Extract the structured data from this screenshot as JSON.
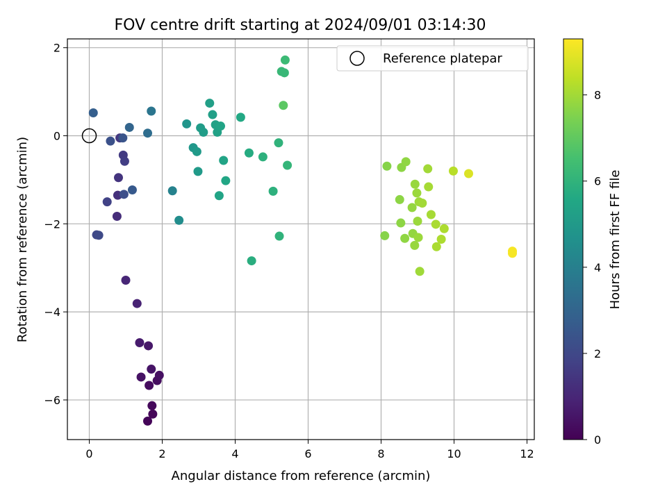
{
  "chart_data": {
    "type": "scatter",
    "title": "FOV centre drift starting at 2024/09/01 03:14:30",
    "xlabel": "Angular distance from reference (arcmin)",
    "ylabel": "Rotation from reference (arcmin)",
    "xlim": [
      -0.6,
      12.2
    ],
    "ylim": [
      -6.9,
      2.2
    ],
    "xticks": [
      0,
      2,
      4,
      6,
      8,
      10,
      12
    ],
    "yticks": [
      -6,
      -4,
      -2,
      0,
      2
    ],
    "grid": true,
    "legend": {
      "label": "Reference platepar",
      "placement": "upper right"
    },
    "reference_point": {
      "x": 0,
      "y": 0
    },
    "colorbar": {
      "label": "Hours from first FF file",
      "colormap": "viridis",
      "range": [
        0,
        9.3
      ],
      "ticks": [
        0,
        2,
        4,
        6,
        8
      ]
    },
    "points": [
      {
        "x": 1.6,
        "y": -6.48,
        "c": 0.1
      },
      {
        "x": 1.74,
        "y": -6.32,
        "c": 0.15
      },
      {
        "x": 1.72,
        "y": -6.13,
        "c": 0.2
      },
      {
        "x": 1.64,
        "y": -5.67,
        "c": 0.3
      },
      {
        "x": 1.86,
        "y": -5.56,
        "c": 0.35
      },
      {
        "x": 1.92,
        "y": -5.44,
        "c": 0.4
      },
      {
        "x": 1.42,
        "y": -5.48,
        "c": 0.45
      },
      {
        "x": 1.7,
        "y": -5.3,
        "c": 0.5
      },
      {
        "x": 1.62,
        "y": -4.77,
        "c": 0.6
      },
      {
        "x": 1.38,
        "y": -4.7,
        "c": 0.7
      },
      {
        "x": 1.31,
        "y": -3.81,
        "c": 0.9
      },
      {
        "x": 1.0,
        "y": -3.28,
        "c": 1.0
      },
      {
        "x": 0.76,
        "y": -1.83,
        "c": 1.2
      },
      {
        "x": 0.78,
        "y": -1.35,
        "c": 1.3
      },
      {
        "x": 0.8,
        "y": -0.95,
        "c": 1.4
      },
      {
        "x": 0.84,
        "y": -0.05,
        "c": 1.5
      },
      {
        "x": 0.93,
        "y": -0.44,
        "c": 1.6
      },
      {
        "x": 0.97,
        "y": -0.58,
        "c": 1.7
      },
      {
        "x": 0.49,
        "y": -1.5,
        "c": 1.8
      },
      {
        "x": 0.2,
        "y": -2.25,
        "c": 2.0
      },
      {
        "x": 0.26,
        "y": -2.26,
        "c": 2.05
      },
      {
        "x": 0.95,
        "y": -1.33,
        "c": 2.2
      },
      {
        "x": 0.58,
        "y": -0.12,
        "c": 2.3
      },
      {
        "x": 0.92,
        "y": -0.05,
        "c": 2.4
      },
      {
        "x": 1.18,
        "y": -1.23,
        "c": 2.6
      },
      {
        "x": 0.11,
        "y": 0.52,
        "c": 2.8
      },
      {
        "x": 1.1,
        "y": 0.19,
        "c": 3.0
      },
      {
        "x": 1.6,
        "y": 0.06,
        "c": 3.3
      },
      {
        "x": 1.7,
        "y": 0.56,
        "c": 3.6
      },
      {
        "x": 2.28,
        "y": -1.25,
        "c": 4.1
      },
      {
        "x": 2.46,
        "y": -1.92,
        "c": 4.5
      },
      {
        "x": 2.67,
        "y": 0.27,
        "c": 4.8
      },
      {
        "x": 2.85,
        "y": -0.27,
        "c": 4.9
      },
      {
        "x": 2.95,
        "y": -0.36,
        "c": 5.0
      },
      {
        "x": 2.98,
        "y": -0.81,
        "c": 5.0
      },
      {
        "x": 3.05,
        "y": 0.18,
        "c": 5.1
      },
      {
        "x": 3.13,
        "y": 0.08,
        "c": 5.1
      },
      {
        "x": 3.3,
        "y": 0.74,
        "c": 5.2
      },
      {
        "x": 3.38,
        "y": 0.48,
        "c": 5.2
      },
      {
        "x": 3.46,
        "y": 0.25,
        "c": 5.3
      },
      {
        "x": 3.51,
        "y": 0.08,
        "c": 5.3
      },
      {
        "x": 3.56,
        "y": -1.36,
        "c": 5.4
      },
      {
        "x": 3.6,
        "y": 0.22,
        "c": 5.4
      },
      {
        "x": 3.68,
        "y": -0.56,
        "c": 5.4
      },
      {
        "x": 3.74,
        "y": -1.02,
        "c": 5.5
      },
      {
        "x": 4.15,
        "y": 0.42,
        "c": 5.6
      },
      {
        "x": 4.38,
        "y": -0.39,
        "c": 5.7
      },
      {
        "x": 4.45,
        "y": -2.84,
        "c": 5.8
      },
      {
        "x": 4.76,
        "y": -0.48,
        "c": 5.9
      },
      {
        "x": 5.04,
        "y": -1.26,
        "c": 5.9
      },
      {
        "x": 5.19,
        "y": -0.16,
        "c": 6.0
      },
      {
        "x": 5.21,
        "y": -2.28,
        "c": 6.0
      },
      {
        "x": 5.43,
        "y": -0.67,
        "c": 6.1
      },
      {
        "x": 5.27,
        "y": 1.46,
        "c": 6.2
      },
      {
        "x": 5.35,
        "y": 1.43,
        "c": 6.2
      },
      {
        "x": 5.37,
        "y": 1.72,
        "c": 6.3
      },
      {
        "x": 5.32,
        "y": 0.69,
        "c": 6.9
      },
      {
        "x": 8.1,
        "y": -2.27,
        "c": 7.6
      },
      {
        "x": 8.16,
        "y": -0.69,
        "c": 7.6
      },
      {
        "x": 8.51,
        "y": -1.45,
        "c": 7.7
      },
      {
        "x": 8.54,
        "y": -1.98,
        "c": 7.7
      },
      {
        "x": 8.56,
        "y": -0.72,
        "c": 7.7
      },
      {
        "x": 8.65,
        "y": -2.33,
        "c": 7.75
      },
      {
        "x": 8.68,
        "y": -0.59,
        "c": 7.75
      },
      {
        "x": 8.85,
        "y": -1.63,
        "c": 7.8
      },
      {
        "x": 8.87,
        "y": -2.22,
        "c": 7.8
      },
      {
        "x": 8.92,
        "y": -2.49,
        "c": 7.85
      },
      {
        "x": 8.93,
        "y": -1.1,
        "c": 7.85
      },
      {
        "x": 8.98,
        "y": -1.3,
        "c": 7.9
      },
      {
        "x": 9.0,
        "y": -1.94,
        "c": 7.9
      },
      {
        "x": 9.02,
        "y": -2.31,
        "c": 7.9
      },
      {
        "x": 9.04,
        "y": -1.5,
        "c": 7.95
      },
      {
        "x": 9.06,
        "y": -3.08,
        "c": 7.95
      },
      {
        "x": 9.13,
        "y": -1.53,
        "c": 8.0
      },
      {
        "x": 9.28,
        "y": -0.75,
        "c": 8.0
      },
      {
        "x": 9.3,
        "y": -1.16,
        "c": 8.05
      },
      {
        "x": 9.37,
        "y": -1.79,
        "c": 8.05
      },
      {
        "x": 9.5,
        "y": -2.01,
        "c": 8.1
      },
      {
        "x": 9.52,
        "y": -2.52,
        "c": 8.1
      },
      {
        "x": 9.65,
        "y": -2.35,
        "c": 8.15
      },
      {
        "x": 9.73,
        "y": -2.11,
        "c": 8.15
      },
      {
        "x": 9.98,
        "y": -0.8,
        "c": 8.3
      },
      {
        "x": 10.4,
        "y": -0.86,
        "c": 8.8
      },
      {
        "x": 11.6,
        "y": -2.62,
        "c": 9.2
      },
      {
        "x": 11.6,
        "y": -2.67,
        "c": 9.2
      }
    ]
  }
}
